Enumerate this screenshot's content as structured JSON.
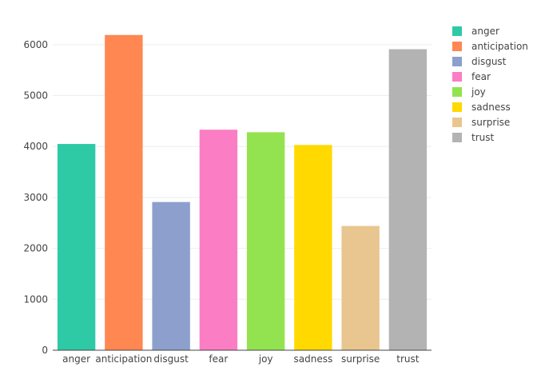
{
  "chart_data": {
    "type": "bar",
    "title": "",
    "xlabel": "",
    "ylabel": "",
    "categories": [
      "anger",
      "anticipation",
      "disgust",
      "fear",
      "joy",
      "sadness",
      "surprise",
      "trust"
    ],
    "values": [
      4050,
      6190,
      2910,
      4330,
      4280,
      4030,
      2440,
      5910
    ],
    "colors": [
      "#2ecaa6",
      "#ff8752",
      "#8d9fcc",
      "#fb7dc4",
      "#93e350",
      "#ffd900",
      "#e9c58f",
      "#b3b3b3"
    ],
    "ylim": [
      0,
      6500
    ],
    "yticks": [
      0,
      1000,
      2000,
      3000,
      4000,
      5000,
      6000
    ],
    "ytick_labels": [
      "0",
      "1000",
      "2000",
      "3000",
      "4000",
      "5000",
      "6000"
    ],
    "grid": "horizontal",
    "legend_position": "right",
    "legend": [
      "anger",
      "anticipation",
      "disgust",
      "fear",
      "joy",
      "sadness",
      "surprise",
      "trust"
    ]
  }
}
